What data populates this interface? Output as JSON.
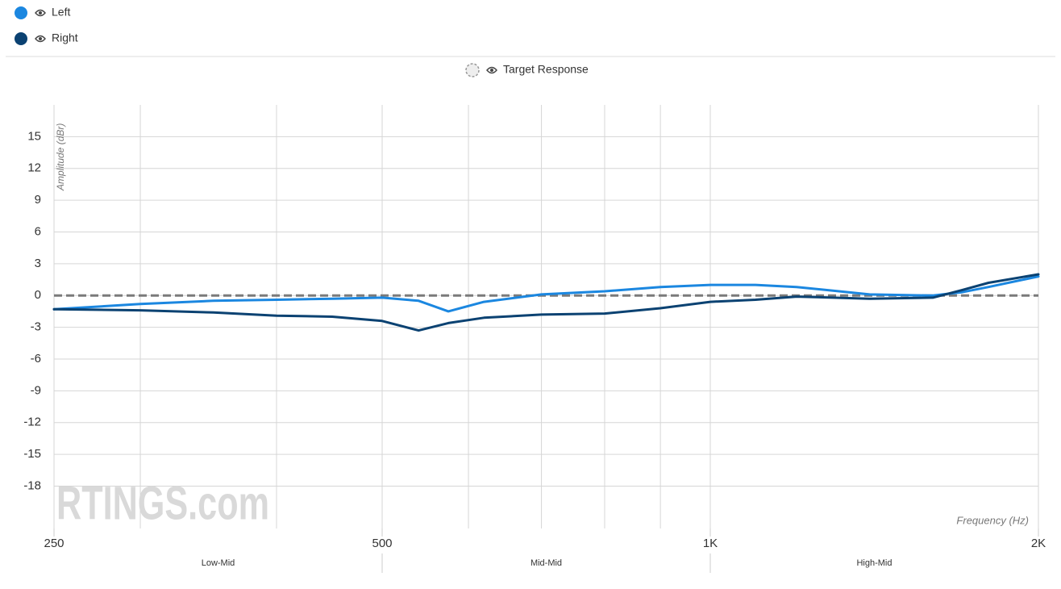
{
  "chart_data": {
    "type": "line",
    "y_label": "Amplitude (dBr)",
    "x_label": "Frequency (Hz)",
    "watermark": "RTINGS.com",
    "log_x": true,
    "grid": true,
    "x": [
      250,
      300,
      350,
      400,
      450,
      500,
      540,
      575,
      620,
      700,
      800,
      900,
      1000,
      1100,
      1200,
      1400,
      1600,
      1700,
      1800,
      2000
    ],
    "series": [
      {
        "name": "Left",
        "color": "#1b87e0",
        "values": [
          -1.3,
          -0.8,
          -0.5,
          -0.4,
          -0.3,
          -0.2,
          -0.5,
          -1.5,
          -0.6,
          0.1,
          0.4,
          0.8,
          1.0,
          1.0,
          0.8,
          0.1,
          0.0,
          0.3,
          0.8,
          1.8
        ]
      },
      {
        "name": "Right",
        "color": "#0b4272",
        "values": [
          -1.3,
          -1.4,
          -1.6,
          -1.9,
          -2.0,
          -2.4,
          -3.3,
          -2.6,
          -2.1,
          -1.8,
          -1.7,
          -1.2,
          -0.6,
          -0.4,
          -0.1,
          -0.3,
          -0.2,
          0.5,
          1.2,
          2.0
        ]
      },
      {
        "name": "Target Response",
        "color": "#7a7a7a",
        "dashed": true,
        "values": [
          0,
          0,
          0,
          0,
          0,
          0,
          0,
          0,
          0,
          0,
          0,
          0,
          0,
          0,
          0,
          0,
          0,
          0,
          0,
          0
        ]
      }
    ],
    "xlim": [
      250,
      2000
    ],
    "xticks": [
      250,
      500,
      {
        "value": 1000,
        "label": "1K"
      },
      {
        "value": 2000,
        "label": "2K"
      }
    ],
    "xminor": [
      300,
      400,
      600,
      700,
      800,
      900
    ],
    "ylim": [
      -22,
      18
    ],
    "yticks": [
      -18,
      -15,
      -12,
      -9,
      -6,
      -3,
      0,
      3,
      6,
      9,
      12,
      15
    ],
    "bands": [
      {
        "label": "Low-Mid",
        "from": 250,
        "to": 500
      },
      {
        "label": "Mid-Mid",
        "from": 500,
        "to": 1000
      },
      {
        "label": "High-Mid",
        "from": 1000,
        "to": 2000
      }
    ]
  }
}
